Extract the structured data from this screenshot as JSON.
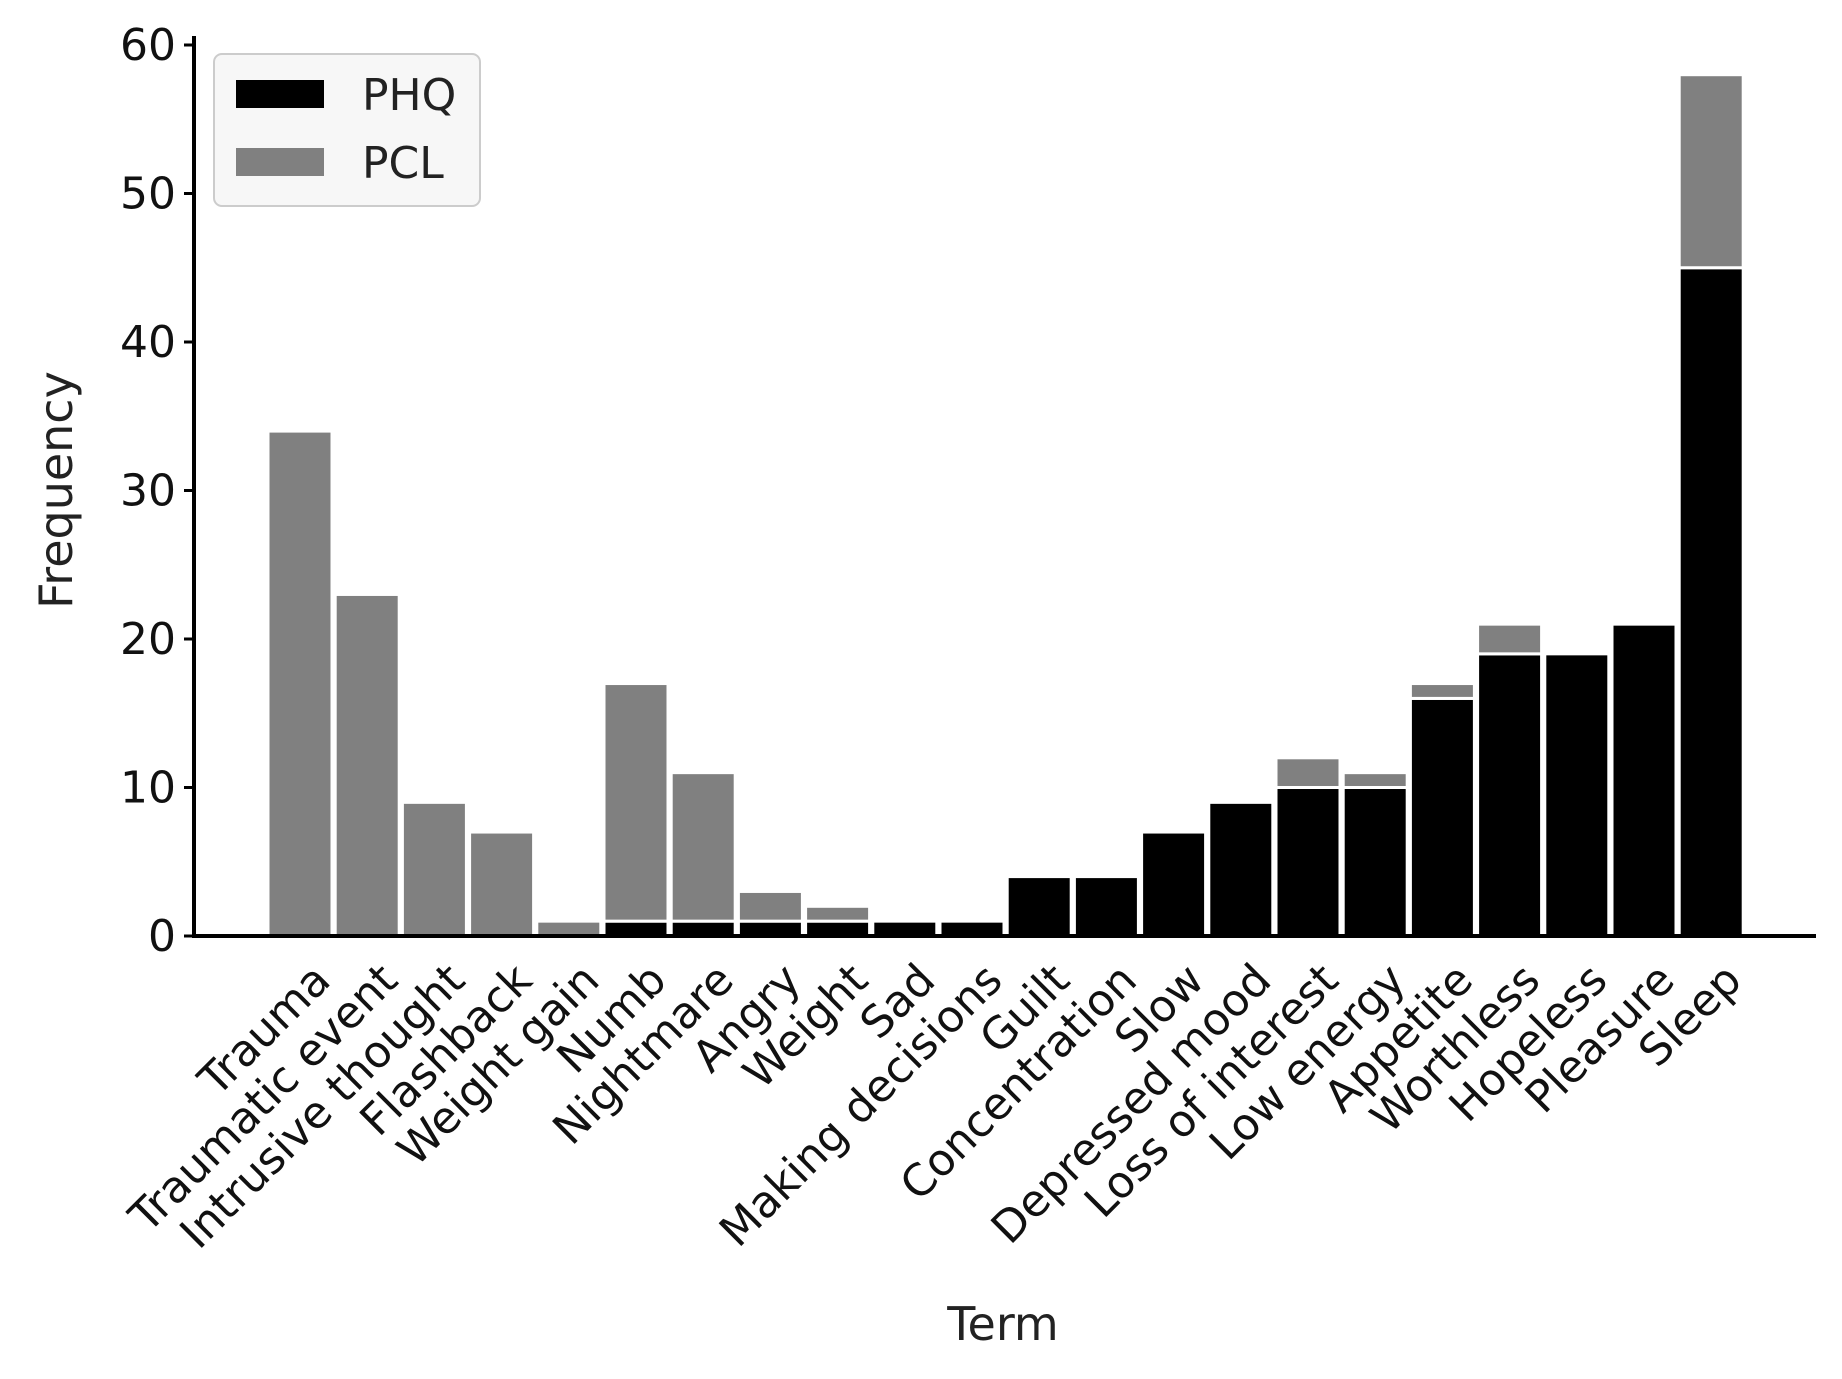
{
  "chart_data": {
    "type": "bar",
    "stacked": true,
    "title": "",
    "xlabel": "Term",
    "ylabel": "Frequency",
    "ylim": [
      0,
      60
    ],
    "yticks": [
      0,
      10,
      20,
      30,
      40,
      50,
      60
    ],
    "grid": false,
    "legend_position": "top-left",
    "categories": [
      "Trauma",
      "Traumatic event",
      "Intrusive thought",
      "Flashback",
      "Weight gain",
      "Numb",
      "Nightmare",
      "Angry",
      "Weight",
      "Sad",
      "Making decisions",
      "Guilt",
      "Concentration",
      "Slow",
      "Depressed mood",
      "Loss of interest",
      "Low energy",
      "Appetite",
      "Worthless",
      "Hopeless",
      "Pleasure",
      "Sleep"
    ],
    "series": [
      {
        "name": "PHQ",
        "color": "#000000",
        "values": [
          0,
          0,
          0,
          0,
          0,
          1,
          1,
          1,
          1,
          1,
          1,
          4,
          4,
          7,
          9,
          10,
          10,
          16,
          19,
          19,
          21,
          45
        ]
      },
      {
        "name": "PCL",
        "color": "#808080",
        "values": [
          34,
          23,
          9,
          7,
          1,
          16,
          10,
          2,
          1,
          0,
          0,
          0,
          0,
          0,
          0,
          2,
          1,
          1,
          2,
          0,
          0,
          13
        ]
      }
    ]
  }
}
